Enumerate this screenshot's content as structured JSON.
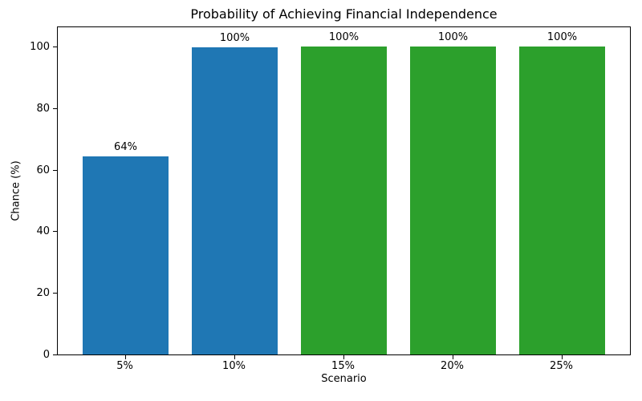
{
  "chart_data": {
    "type": "bar",
    "title": "Probability of Achieving Financial Independence",
    "xlabel": "Scenario",
    "ylabel": "Chance (%)",
    "categories": [
      "5%",
      "10%",
      "15%",
      "20%",
      "25%"
    ],
    "values": [
      64.3,
      99.7,
      100,
      100,
      100
    ],
    "bar_labels": [
      "64%",
      "100%",
      "100%",
      "100%",
      "100%"
    ],
    "bar_colors": [
      "#1f77b4",
      "#1f77b4",
      "#2ca02c",
      "#2ca02c",
      "#2ca02c"
    ],
    "yticks": [
      0,
      20,
      40,
      60,
      80,
      100
    ],
    "ylim": [
      0,
      106.8
    ],
    "grid": false,
    "legend": null,
    "background_color": "#ffffff",
    "spine_color": "#000000"
  }
}
